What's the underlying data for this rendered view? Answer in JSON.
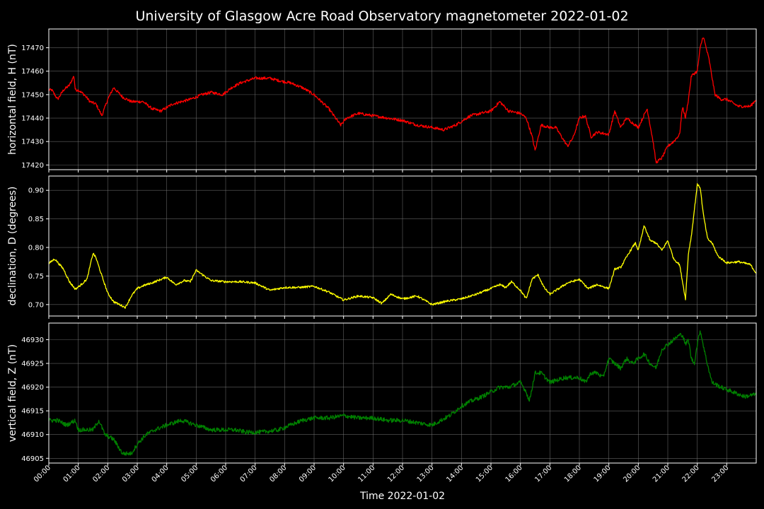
{
  "title": "University of Glasgow Acre Road Observatory magnetometer 2022-01-02",
  "chart_data": {
    "type": "line",
    "xlabel": "Time 2022-01-02",
    "x_tick_labels": [
      "00:00",
      "01:00",
      "02:00",
      "03:00",
      "04:00",
      "05:00",
      "06:00",
      "07:00",
      "08:00",
      "09:00",
      "10:00",
      "11:00",
      "12:00",
      "13:00",
      "14:00",
      "15:00",
      "16:00",
      "17:00",
      "18:00",
      "19:00",
      "20:00",
      "21:00",
      "22:00",
      "23:00"
    ],
    "x_range_hours": [
      0,
      24
    ],
    "grid": true,
    "panels": [
      {
        "ylabel": "horizontal field, H (nT)",
        "color": "#ff0000",
        "ylim": [
          17418,
          17478
        ],
        "yticks": [
          17420,
          17430,
          17440,
          17450,
          17460,
          17470
        ],
        "noise": 0.6,
        "x": [
          0,
          0.1,
          0.3,
          0.5,
          0.7,
          0.85,
          0.9,
          1.0,
          1.2,
          1.4,
          1.6,
          1.8,
          2.0,
          2.2,
          2.5,
          2.8,
          3.2,
          3.5,
          3.8,
          4.2,
          4.5,
          4.8,
          5.2,
          5.5,
          5.9,
          6.2,
          6.5,
          7.0,
          7.5,
          7.8,
          8.2,
          8.6,
          9.0,
          9.5,
          9.9,
          10.1,
          10.3,
          10.5,
          11.0,
          11.5,
          12.0,
          12.5,
          13.0,
          13.4,
          13.8,
          14.3,
          15.0,
          15.3,
          15.6,
          16.0,
          16.2,
          16.4,
          16.5,
          16.7,
          17.0,
          17.2,
          17.4,
          17.6,
          17.8,
          18.0,
          18.2,
          18.4,
          18.6,
          19.0,
          19.2,
          19.4,
          19.6,
          19.8,
          20.0,
          20.3,
          20.5,
          20.6,
          20.8,
          21.0,
          21.2,
          21.4,
          21.5,
          21.6,
          21.7,
          21.8,
          22.0,
          22.1,
          22.2,
          22.4,
          22.6,
          22.8,
          23.0,
          23.4,
          23.8,
          24.0
        ],
        "values": [
          17452,
          17452,
          17448,
          17452,
          17454,
          17458,
          17452,
          17452,
          17450,
          17447,
          17446,
          17441,
          17448,
          17453,
          17449,
          17447,
          17447,
          17444,
          17443,
          17446,
          17447,
          17448,
          17450,
          17451,
          17450,
          17453,
          17455,
          17457,
          17457,
          17456,
          17455,
          17453,
          17450,
          17444,
          17437,
          17440,
          17441,
          17442,
          17441,
          17440,
          17439,
          17437,
          17436,
          17435,
          17437,
          17441,
          17443,
          17447,
          17443,
          17442,
          17440,
          17432,
          17426,
          17437,
          17436,
          17436,
          17432,
          17428,
          17432,
          17440,
          17441,
          17432,
          17434,
          17433,
          17443,
          17436,
          17440,
          17438,
          17436,
          17444,
          17430,
          17421,
          17423,
          17428,
          17430,
          17433,
          17445,
          17440,
          17448,
          17458,
          17460,
          17470,
          17475,
          17465,
          17450,
          17448,
          17448,
          17445,
          17445,
          17448
        ]
      },
      {
        "ylabel": "declination, D (degrees)",
        "color": "#ffff00",
        "ylim": [
          0.68,
          0.925
        ],
        "yticks": [
          0.7,
          0.75,
          0.8,
          0.85,
          0.9
        ],
        "noise": 0.0018,
        "x": [
          0,
          0.2,
          0.5,
          0.7,
          0.9,
          1.1,
          1.3,
          1.5,
          1.6,
          1.8,
          2.0,
          2.2,
          2.4,
          2.6,
          2.8,
          3.0,
          3.2,
          3.5,
          4.0,
          4.3,
          4.6,
          4.8,
          5.0,
          5.5,
          6.0,
          6.5,
          7.0,
          7.5,
          8.0,
          8.5,
          9.0,
          9.5,
          10.0,
          10.5,
          11.0,
          11.3,
          11.6,
          12.0,
          12.5,
          13.0,
          13.5,
          14.0,
          14.5,
          15.0,
          15.3,
          15.5,
          15.7,
          16.0,
          16.2,
          16.4,
          16.6,
          16.8,
          17.0,
          17.3,
          17.6,
          18.0,
          18.3,
          18.6,
          19.0,
          19.2,
          19.4,
          19.7,
          19.9,
          20.0,
          20.2,
          20.4,
          20.6,
          20.8,
          21.0,
          21.2,
          21.4,
          21.5,
          21.6,
          21.7,
          21.8,
          21.9,
          22.0,
          22.1,
          22.2,
          22.35,
          22.5,
          22.7,
          23.0,
          23.4,
          23.8,
          24.0
        ],
        "values": [
          0.772,
          0.78,
          0.762,
          0.74,
          0.727,
          0.735,
          0.745,
          0.79,
          0.782,
          0.75,
          0.72,
          0.705,
          0.7,
          0.695,
          0.715,
          0.728,
          0.733,
          0.738,
          0.748,
          0.735,
          0.742,
          0.74,
          0.76,
          0.742,
          0.74,
          0.74,
          0.738,
          0.725,
          0.73,
          0.73,
          0.732,
          0.722,
          0.708,
          0.715,
          0.712,
          0.702,
          0.718,
          0.71,
          0.715,
          0.7,
          0.706,
          0.71,
          0.718,
          0.728,
          0.735,
          0.73,
          0.74,
          0.725,
          0.71,
          0.745,
          0.752,
          0.73,
          0.718,
          0.728,
          0.738,
          0.744,
          0.728,
          0.735,
          0.728,
          0.762,
          0.765,
          0.792,
          0.808,
          0.795,
          0.838,
          0.812,
          0.808,
          0.795,
          0.812,
          0.78,
          0.77,
          0.74,
          0.71,
          0.79,
          0.82,
          0.865,
          0.91,
          0.905,
          0.86,
          0.815,
          0.808,
          0.785,
          0.773,
          0.775,
          0.77,
          0.755
        ]
      },
      {
        "ylabel": "vertical field, Z (nT)",
        "color": "#008000",
        "ylim": [
          46904,
          46933.5
        ],
        "yticks": [
          46905,
          46910,
          46915,
          46920,
          46925,
          46930
        ],
        "noise": 0.45,
        "x": [
          0,
          0.3,
          0.6,
          0.9,
          1.0,
          1.2,
          1.5,
          1.7,
          1.9,
          2.2,
          2.5,
          2.8,
          3.0,
          3.3,
          3.6,
          4.0,
          4.5,
          5.0,
          5.5,
          6.0,
          6.3,
          6.7,
          7.2,
          7.8,
          8.2,
          8.6,
          9.0,
          9.5,
          10.0,
          10.5,
          11.0,
          11.5,
          12.0,
          12.5,
          13.0,
          13.3,
          13.6,
          14.0,
          14.3,
          14.7,
          15.0,
          15.3,
          15.6,
          16.0,
          16.2,
          16.3,
          16.5,
          16.7,
          17.0,
          17.5,
          18.0,
          18.2,
          18.4,
          18.6,
          18.8,
          19.0,
          19.2,
          19.4,
          19.6,
          19.8,
          20.0,
          20.2,
          20.4,
          20.6,
          20.8,
          21.0,
          21.2,
          21.4,
          21.5,
          21.6,
          21.7,
          21.8,
          21.9,
          22.0,
          22.1,
          22.3,
          22.5,
          22.8,
          23.2,
          23.6,
          24.0
        ],
        "values": [
          46913,
          46913,
          46912,
          46913,
          46911,
          46911,
          46911,
          46913,
          46910,
          46909,
          46906,
          46906,
          46908,
          46910,
          46911,
          46912,
          46913,
          46912,
          46911,
          46911,
          46911,
          46910.5,
          46910.5,
          46911,
          46912,
          46913,
          46913.5,
          46913.5,
          46914,
          46913.5,
          46913.5,
          46913,
          46913,
          46912.5,
          46912,
          46913,
          46914,
          46916,
          46917,
          46918,
          46919,
          46920,
          46920,
          46921,
          46919,
          46917,
          46923,
          46923,
          46921,
          46922,
          46922,
          46921,
          46923,
          46923,
          46922,
          46926,
          46925,
          46924,
          46926,
          46925,
          46926,
          46927,
          46925,
          46924,
          46928,
          46929,
          46930,
          46931,
          46931,
          46929,
          46930,
          46926,
          46925,
          46929,
          46932,
          46926,
          46921,
          46920,
          46919,
          46918,
          46918.5
        ]
      }
    ]
  }
}
